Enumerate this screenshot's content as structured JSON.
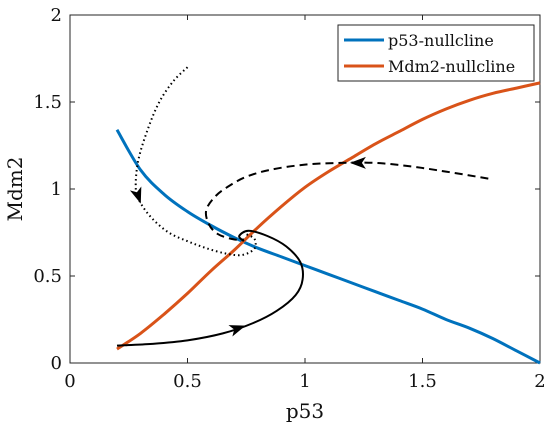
{
  "chart_data": {
    "type": "line",
    "xlabel": "p53",
    "ylabel": "Mdm2",
    "xlim": [
      0,
      2
    ],
    "ylim": [
      0,
      2
    ],
    "x_ticks": [
      0,
      0.5,
      1,
      1.5,
      2
    ],
    "y_ticks": [
      0,
      0.5,
      1,
      1.5,
      2
    ],
    "x_tick_labels": [
      "0",
      "0.5",
      "1",
      "1.5",
      "2"
    ],
    "y_tick_labels": [
      "0",
      "0.5",
      "1",
      "1.5",
      "2"
    ],
    "grid": false,
    "legend": "top-right",
    "series": [
      {
        "name": "p53-nullcline",
        "color": "#0072BD",
        "x": [
          0.2,
          0.3,
          0.4,
          0.5,
          0.6,
          0.7,
          0.8,
          0.9,
          1.0,
          1.1,
          1.2,
          1.3,
          1.4,
          1.5,
          1.6,
          1.7,
          1.8,
          1.9,
          2.0
        ],
        "y": [
          1.34,
          1.11,
          0.97,
          0.87,
          0.79,
          0.72,
          0.66,
          0.61,
          0.56,
          0.51,
          0.46,
          0.41,
          0.36,
          0.31,
          0.25,
          0.2,
          0.14,
          0.07,
          0.0
        ]
      },
      {
        "name": "Mdm2-nullcline",
        "color": "#D95319",
        "x": [
          0.2,
          0.3,
          0.4,
          0.5,
          0.6,
          0.7,
          0.8,
          0.9,
          1.0,
          1.1,
          1.2,
          1.3,
          1.4,
          1.5,
          1.6,
          1.7,
          1.8,
          1.9,
          2.0
        ],
        "y": [
          0.08,
          0.17,
          0.28,
          0.4,
          0.53,
          0.65,
          0.78,
          0.9,
          1.01,
          1.1,
          1.18,
          1.26,
          1.33,
          1.4,
          1.46,
          1.51,
          1.55,
          1.58,
          1.61
        ]
      }
    ],
    "trajectories": [
      {
        "style": "dotted",
        "color": "#000000",
        "x": [
          0.5,
          0.44,
          0.38,
          0.33,
          0.29,
          0.28,
          0.3,
          0.35,
          0.42,
          0.5,
          0.58,
          0.66,
          0.73,
          0.78,
          0.79,
          0.78,
          0.75
        ],
        "y": [
          1.7,
          1.62,
          1.5,
          1.34,
          1.16,
          1.0,
          0.92,
          0.83,
          0.75,
          0.7,
          0.66,
          0.63,
          0.62,
          0.65,
          0.69,
          0.72,
          0.74
        ],
        "arrow_at": 5
      },
      {
        "style": "dashed",
        "color": "#000000",
        "x": [
          1.78,
          1.6,
          1.45,
          1.3,
          1.15,
          1.0,
          0.85,
          0.75,
          0.68,
          0.62,
          0.58,
          0.59,
          0.63,
          0.7,
          0.74
        ],
        "y": [
          1.06,
          1.1,
          1.13,
          1.15,
          1.15,
          1.14,
          1.11,
          1.07,
          1.02,
          0.96,
          0.88,
          0.8,
          0.74,
          0.71,
          0.71
        ],
        "arrow_at": 3
      },
      {
        "style": "solid",
        "color": "#000000",
        "x": [
          0.2,
          0.35,
          0.5,
          0.65,
          0.78,
          0.88,
          0.96,
          0.99,
          0.98,
          0.92,
          0.84,
          0.76,
          0.72,
          0.74
        ],
        "y": [
          0.1,
          0.11,
          0.13,
          0.17,
          0.23,
          0.3,
          0.39,
          0.48,
          0.58,
          0.67,
          0.73,
          0.76,
          0.73,
          0.7
        ],
        "arrow_at": 3
      }
    ]
  }
}
